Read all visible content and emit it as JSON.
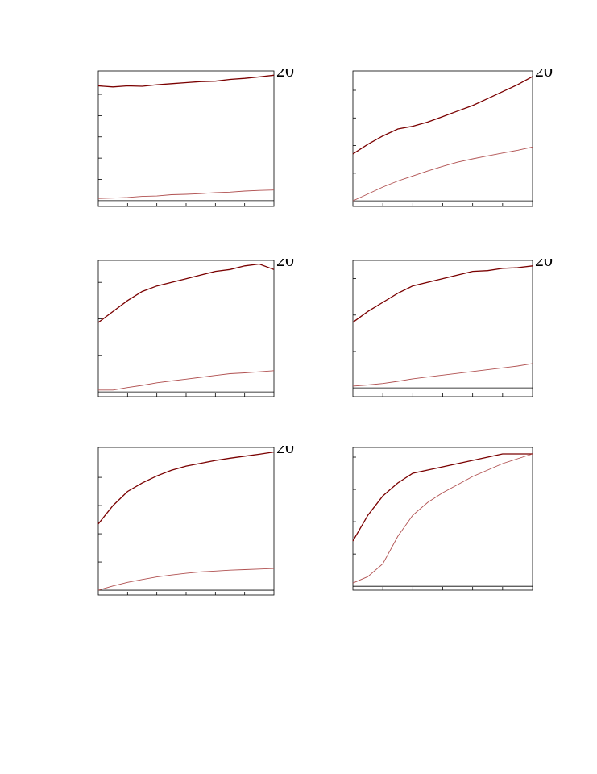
{
  "chart_data": [
    {
      "type": "line",
      "corner_label": "20",
      "x": [
        0,
        0.5,
        1,
        1.5,
        2,
        2.5,
        3,
        3.5,
        4,
        4.5,
        5,
        5.5,
        6
      ],
      "xlim": [
        0,
        6
      ],
      "xticks": [
        1,
        2,
        3,
        4,
        5
      ],
      "ylim": [
        -0.27,
        6.1
      ],
      "yticks": [
        1,
        2,
        3,
        4,
        5
      ],
      "series": [
        {
          "color": "#7a0000",
          "values": [
            5.4,
            5.35,
            5.4,
            5.38,
            5.45,
            5.5,
            5.55,
            5.6,
            5.62,
            5.7,
            5.75,
            5.82,
            5.9
          ]
        },
        {
          "color": "#b05050",
          "values": [
            0.1,
            0.12,
            0.15,
            0.2,
            0.22,
            0.28,
            0.3,
            0.33,
            0.38,
            0.4,
            0.45,
            0.48,
            0.5
          ]
        }
      ]
    },
    {
      "type": "line",
      "corner_label": "20",
      "x": [
        0,
        0.5,
        1,
        1.5,
        2,
        2.5,
        3,
        3.5,
        4,
        4.5,
        5,
        5.5,
        6
      ],
      "xlim": [
        0,
        6
      ],
      "xticks": [
        1,
        2,
        3,
        4,
        5
      ],
      "ylim": [
        -0.2,
        4.7
      ],
      "yticks": [
        1,
        2,
        3,
        4
      ],
      "series": [
        {
          "color": "#7a0000",
          "values": [
            1.7,
            2.05,
            2.35,
            2.6,
            2.7,
            2.85,
            3.05,
            3.25,
            3.45,
            3.7,
            3.95,
            4.2,
            4.5
          ]
        },
        {
          "color": "#b05050",
          "values": [
            0,
            0.25,
            0.5,
            0.72,
            0.9,
            1.08,
            1.25,
            1.4,
            1.52,
            1.63,
            1.73,
            1.83,
            1.95
          ]
        }
      ]
    },
    {
      "type": "line",
      "corner_label": "20",
      "x": [
        0,
        0.5,
        1,
        1.5,
        2,
        2.5,
        3,
        3.5,
        4,
        4.5,
        5,
        5.5,
        6
      ],
      "xlim": [
        0,
        6
      ],
      "xticks": [
        1,
        2,
        3,
        4,
        5
      ],
      "ylim": [
        -0.13,
        3.6
      ],
      "yticks": [
        1,
        2,
        3
      ],
      "series": [
        {
          "color": "#7a0000",
          "values": [
            1.9,
            2.2,
            2.5,
            2.75,
            2.9,
            3.0,
            3.1,
            3.2,
            3.3,
            3.35,
            3.45,
            3.5,
            3.35
          ]
        },
        {
          "color": "#b05050",
          "values": [
            0.05,
            0.05,
            0.12,
            0.18,
            0.25,
            0.3,
            0.35,
            0.4,
            0.45,
            0.5,
            0.52,
            0.55,
            0.58
          ]
        }
      ]
    },
    {
      "type": "line",
      "corner_label": "20",
      "x": [
        0,
        0.5,
        1,
        1.5,
        2,
        2.5,
        3,
        3.5,
        4,
        4.5,
        5,
        5.5,
        6
      ],
      "xlim": [
        0,
        6
      ],
      "xticks": [
        1,
        2,
        3,
        4,
        5
      ],
      "ylim": [
        -0.24,
        3.5
      ],
      "yticks": [
        1,
        2,
        3
      ],
      "series": [
        {
          "color": "#7a0000",
          "values": [
            1.8,
            2.1,
            2.35,
            2.6,
            2.8,
            2.9,
            3.0,
            3.1,
            3.2,
            3.22,
            3.28,
            3.3,
            3.35
          ]
        },
        {
          "color": "#b05050",
          "values": [
            0.05,
            0.08,
            0.12,
            0.18,
            0.25,
            0.3,
            0.35,
            0.4,
            0.45,
            0.5,
            0.55,
            0.6,
            0.67
          ]
        }
      ]
    },
    {
      "type": "line",
      "corner_label": "20",
      "x": [
        0,
        0.5,
        1,
        1.5,
        2,
        2.5,
        3,
        3.5,
        4,
        4.5,
        5,
        5.5,
        6
      ],
      "xlim": [
        0,
        6
      ],
      "xticks": [
        1,
        2,
        3,
        4,
        5
      ],
      "ylim": [
        -0.17,
        5.06
      ],
      "yticks": [
        1,
        2,
        3,
        4
      ],
      "series": [
        {
          "color": "#7a0000",
          "values": [
            2.35,
            3.0,
            3.5,
            3.8,
            4.05,
            4.25,
            4.4,
            4.5,
            4.6,
            4.68,
            4.75,
            4.82,
            4.9
          ]
        },
        {
          "color": "#b05050",
          "values": [
            0,
            0.15,
            0.28,
            0.38,
            0.47,
            0.54,
            0.6,
            0.65,
            0.68,
            0.71,
            0.73,
            0.75,
            0.77
          ]
        }
      ]
    },
    {
      "type": "line",
      "x": [
        0,
        0.5,
        1,
        1.5,
        2,
        2.5,
        3,
        3.5,
        4,
        4.5,
        5,
        5.5,
        6
      ],
      "xlim": [
        0,
        6
      ],
      "xticks": [
        1,
        2,
        3,
        4,
        5
      ],
      "ylim": [
        -0.12,
        4.3
      ],
      "yticks": [
        1,
        2,
        3,
        4
      ],
      "series": [
        {
          "color": "#7a0000",
          "values": [
            1.4,
            2.2,
            2.8,
            3.2,
            3.5,
            3.6,
            3.7,
            3.8,
            3.9,
            4.0,
            4.1,
            4.1,
            4.1
          ]
        },
        {
          "color": "#b05050",
          "values": [
            0.1,
            0.3,
            0.7,
            1.55,
            2.2,
            2.6,
            2.9,
            3.15,
            3.4,
            3.6,
            3.8,
            3.95,
            4.1
          ]
        }
      ]
    }
  ]
}
